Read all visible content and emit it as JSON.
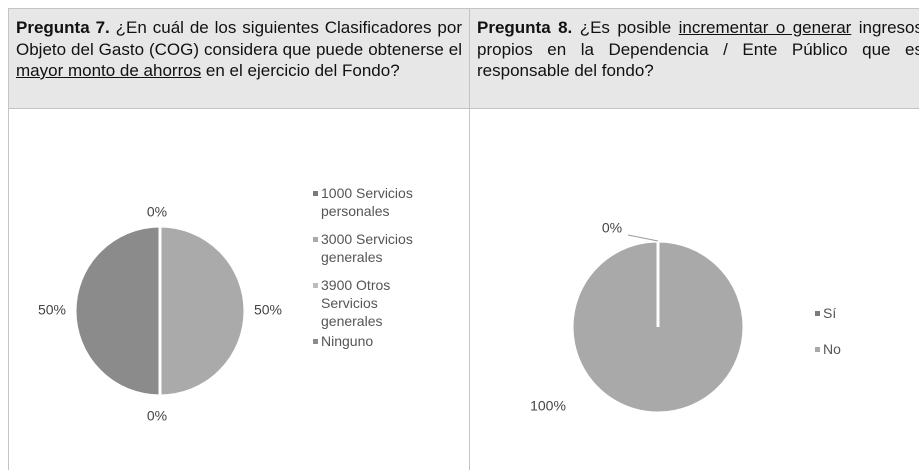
{
  "table": {
    "headers": [
      [
        {
          "text": "Pregunta 7.",
          "style": "bold"
        },
        {
          "text": " ¿En cuál de los siguientes Clasificadores por Objeto del Gasto (COG) considera que puede obtenerse el ",
          "style": "plain"
        },
        {
          "text": "mayor monto de ahorros",
          "style": "underline"
        },
        {
          "text": " en el ejercicio del Fondo?",
          "style": "plain"
        }
      ],
      [
        {
          "text": "Pregunta 8.",
          "style": "bold"
        },
        {
          "text": " ¿Es posible ",
          "style": "plain"
        },
        {
          "text": "incrementar o generar",
          "style": "underline"
        },
        {
          "text": " ingresos propios en la Dependencia / Ente Público que es responsable del fondo?",
          "style": "plain"
        }
      ]
    ]
  },
  "chart_data": [
    {
      "type": "pie",
      "categories": [
        "1000 Servicios personales",
        "3000 Servicios generales",
        "3900 Otros Servicios generales",
        "Ninguno"
      ],
      "values": [
        0,
        50,
        0,
        50
      ],
      "value_labels": [
        "0%",
        "50%",
        "0%",
        "50%"
      ],
      "colors": [
        "#7b7b7b",
        "#aaaaaa",
        "#bcbcbc",
        "#8b8b8b"
      ]
    },
    {
      "type": "pie",
      "categories": [
        "Sí",
        "No"
      ],
      "values": [
        0,
        100
      ],
      "value_labels": [
        "0%",
        "100%"
      ],
      "colors": [
        "#7b7b7b",
        "#a9a9a9"
      ]
    }
  ]
}
